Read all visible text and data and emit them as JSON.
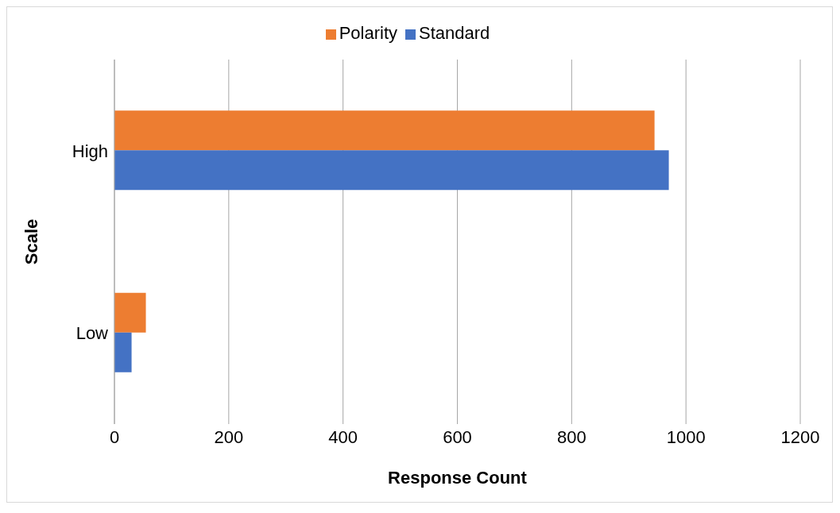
{
  "chart_data": {
    "type": "bar",
    "orientation": "horizontal",
    "categories": [
      "High",
      "Low"
    ],
    "series": [
      {
        "name": "Polarity",
        "color": "#ed7d31",
        "values": [
          945,
          55
        ]
      },
      {
        "name": "Standard",
        "color": "#4472c4",
        "values": [
          970,
          30
        ]
      }
    ],
    "xlabel": "Response Count",
    "ylabel": "Scale",
    "xlim": [
      0,
      1200
    ],
    "xticks": [
      0,
      200,
      400,
      600,
      800,
      1000,
      1200
    ],
    "grid": "x",
    "legend": "top"
  }
}
